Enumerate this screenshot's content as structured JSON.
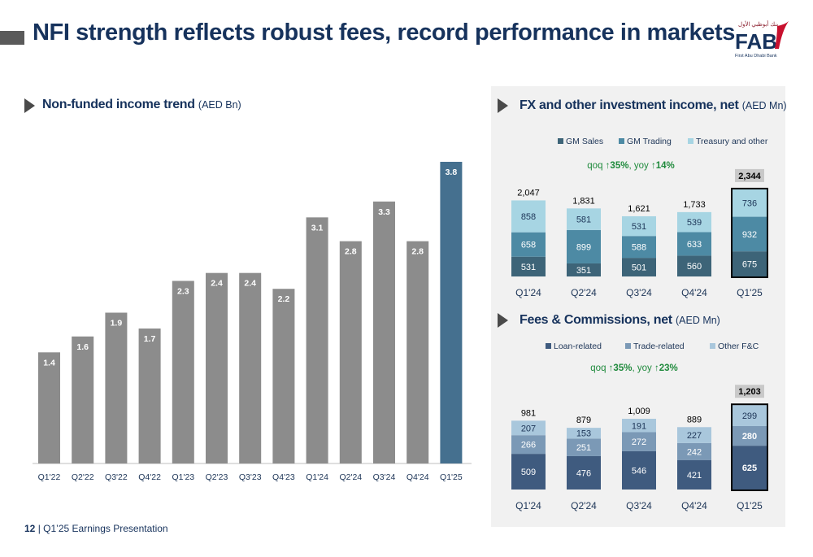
{
  "header": {
    "title": "NFI strength reflects robust fees, record performance in markets",
    "logo_text": "FAB",
    "logo_subtext": "First Abu Dhabi Bank"
  },
  "left_section": {
    "title": "Non-funded income trend",
    "unit": "(AED Bn)"
  },
  "fx_section": {
    "title": "FX and other investment income, net",
    "unit": "(AED Mn)",
    "growth": {
      "qoq_label": "qoq",
      "qoq_value": "35%",
      "yoy_label": "yoy",
      "yoy_value": "14%",
      "arrow": "↑"
    }
  },
  "fees_section": {
    "title": "Fees & Commissions, net",
    "unit": "(AED Mn)",
    "growth": {
      "qoq_label": "qoq",
      "qoq_value": "35%",
      "yoy_label": "yoy",
      "yoy_value": "23%",
      "arrow": "↑"
    }
  },
  "footer": {
    "page_number": "12",
    "separator": "|",
    "label": "Q1’25 Earnings Presentation"
  },
  "colors": {
    "title": "#16325c",
    "bar_grey": "#8c8c8c",
    "bar_highlight": "#45708f",
    "gm_sales": "#3d6478",
    "gm_trading": "#4d8aa4",
    "treasury": "#a7d5e3",
    "loan": "#3f5b7f",
    "trade": "#7b99b6",
    "other_fc": "#a9c7dc",
    "panel_bg": "#f1f1f1"
  },
  "chart_data": [
    {
      "type": "bar",
      "title": "Non-funded income trend",
      "unit": "AED Bn",
      "categories": [
        "Q1'22",
        "Q2'22",
        "Q3'22",
        "Q4'22",
        "Q1'23",
        "Q2'23",
        "Q3'23",
        "Q4'23",
        "Q1'24",
        "Q2'24",
        "Q3'24",
        "Q4'24",
        "Q1'25"
      ],
      "values": [
        1.4,
        1.6,
        1.9,
        1.7,
        2.3,
        2.4,
        2.4,
        2.2,
        3.1,
        2.8,
        3.3,
        2.8,
        3.8
      ],
      "labels": [
        "1.4",
        "1.6",
        "1.9",
        "1.7",
        "2.3",
        "2.4",
        "2.4",
        "2.2",
        "3.1",
        "2.8",
        "3.3",
        "2.8",
        "3.8"
      ],
      "highlight_index": 12,
      "ylim": [
        0,
        4.0
      ],
      "grid": false
    },
    {
      "type": "bar",
      "stacked": true,
      "title": "FX and other investment income, net",
      "unit": "AED Mn",
      "categories": [
        "Q1'24",
        "Q2'24",
        "Q3'24",
        "Q4'24",
        "Q1'25"
      ],
      "series": [
        {
          "name": "GM Sales",
          "values": [
            531,
            351,
            501,
            560,
            675
          ]
        },
        {
          "name": "GM Trading",
          "values": [
            658,
            899,
            588,
            633,
            932
          ]
        },
        {
          "name": "Treasury and other",
          "values": [
            858,
            581,
            531,
            539,
            736
          ]
        }
      ],
      "totals": [
        2047,
        1831,
        1621,
        1733,
        2344
      ],
      "total_labels": [
        "2,047",
        "1,831",
        "1,621",
        "1,733",
        "2,344"
      ],
      "highlight_index": 4,
      "legend": "top",
      "grid": false
    },
    {
      "type": "bar",
      "stacked": true,
      "title": "Fees & Commissions, net",
      "unit": "AED Mn",
      "categories": [
        "Q1'24",
        "Q2'24",
        "Q3'24",
        "Q4'24",
        "Q1'25"
      ],
      "series": [
        {
          "name": "Loan-related",
          "values": [
            509,
            476,
            546,
            421,
            625
          ]
        },
        {
          "name": "Trade-related",
          "values": [
            266,
            251,
            272,
            242,
            280
          ]
        },
        {
          "name": "Other F&C",
          "values": [
            207,
            153,
            191,
            227,
            299
          ]
        }
      ],
      "totals": [
        981,
        879,
        1009,
        889,
        1203
      ],
      "total_labels": [
        "981",
        "879",
        "1,009",
        "889",
        "1,203"
      ],
      "highlight_index": 4,
      "legend": "top",
      "grid": false
    }
  ]
}
